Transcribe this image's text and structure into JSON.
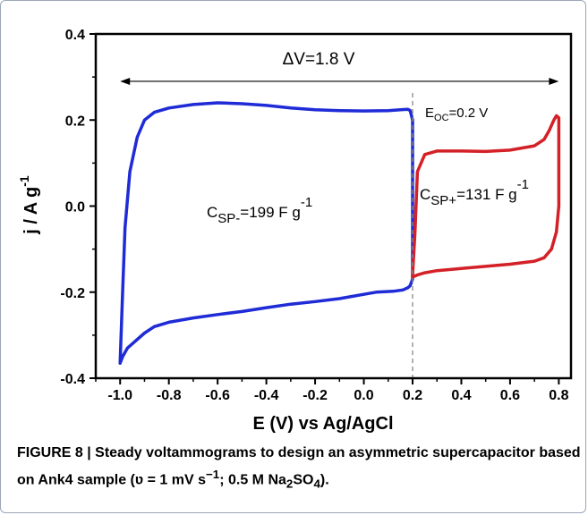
{
  "chart_data": {
    "type": "line",
    "xlabel": "E (V) vs Ag/AgCl",
    "ylabel": "j / A g",
    "ylabel_sup": "-1",
    "xlim": [
      -1.1,
      0.85
    ],
    "ylim": [
      -0.4,
      0.4
    ],
    "x_ticks": [
      "-1.0",
      "-0.8",
      "-0.6",
      "-0.4",
      "-0.2",
      "0.0",
      "0.2",
      "0.4",
      "0.6",
      "0.8"
    ],
    "y_ticks": [
      "-0.4",
      "-0.2",
      "0.0",
      "0.2",
      "0.4"
    ],
    "colors": {
      "negative": "#1f2bd6",
      "positive": "#d42027",
      "frame": "#000000",
      "ocp_line": "#888888"
    },
    "series": [
      {
        "color": "#1f2bd6",
        "x": [
          -1.0,
          -0.99,
          -0.98,
          -0.96,
          -0.93,
          -0.9,
          -0.86,
          -0.8,
          -0.7,
          -0.6,
          -0.5,
          -0.4,
          -0.3,
          -0.2,
          -0.1,
          0.0,
          0.1,
          0.15,
          0.18,
          0.19,
          0.2,
          0.2,
          0.2,
          0.19,
          0.18,
          0.16,
          0.12,
          0.05,
          0.0,
          -0.1,
          -0.2,
          -0.3,
          -0.4,
          -0.5,
          -0.6,
          -0.7,
          -0.8,
          -0.86,
          -0.9,
          -0.94,
          -0.97,
          -0.99,
          -1.0
        ],
        "y": [
          -0.365,
          -0.2,
          -0.05,
          0.08,
          0.16,
          0.2,
          0.218,
          0.228,
          0.236,
          0.24,
          0.238,
          0.234,
          0.228,
          0.224,
          0.222,
          0.221,
          0.222,
          0.224,
          0.225,
          0.222,
          0.2,
          0.0,
          -0.17,
          -0.185,
          -0.19,
          -0.195,
          -0.198,
          -0.2,
          -0.205,
          -0.215,
          -0.222,
          -0.228,
          -0.236,
          -0.245,
          -0.252,
          -0.26,
          -0.27,
          -0.28,
          -0.295,
          -0.315,
          -0.33,
          -0.35,
          -0.365
        ]
      },
      {
        "color": "#d42027",
        "x": [
          0.2,
          0.21,
          0.22,
          0.25,
          0.3,
          0.4,
          0.5,
          0.6,
          0.7,
          0.74,
          0.76,
          0.78,
          0.79,
          0.8,
          0.8,
          0.79,
          0.77,
          0.74,
          0.7,
          0.6,
          0.5,
          0.4,
          0.3,
          0.25,
          0.22,
          0.2,
          0.2
        ],
        "y": [
          -0.16,
          -0.06,
          0.08,
          0.12,
          0.128,
          0.128,
          0.127,
          0.13,
          0.14,
          0.155,
          0.175,
          0.2,
          0.21,
          0.205,
          0.0,
          -0.06,
          -0.1,
          -0.12,
          -0.128,
          -0.135,
          -0.14,
          -0.145,
          -0.15,
          -0.155,
          -0.16,
          -0.165,
          -0.16
        ]
      }
    ],
    "annotations": {
      "delta_v": "ΔV=1.8 V",
      "eoc_main": "E",
      "eoc_sub": "OC",
      "eoc_value": "=0.2 V",
      "csp_minus_main": "C",
      "csp_minus_sub": "SP-",
      "csp_minus_value": "=199 F g",
      "csp_minus_sup": "-1",
      "csp_plus_main": "C",
      "csp_plus_sub": "SP+",
      "csp_plus_value": "=131 F g",
      "csp_plus_sup": "-1"
    },
    "reference_lines": {
      "arrow_from_x": -1.0,
      "arrow_to_x": 0.8,
      "arrow_y": 0.29,
      "ocp_x": 0.2
    }
  },
  "caption": {
    "label": "FIGURE 8 | Steady voltammograms to design an asymmetric supercapacitor based on Ank4 sample (ʋ = 1 mV s",
    "sup1": "−1",
    "mid": "; 0.5 M Na",
    "sub1": "2",
    "mid2": "SO",
    "sub2": "4",
    "end": ")."
  }
}
